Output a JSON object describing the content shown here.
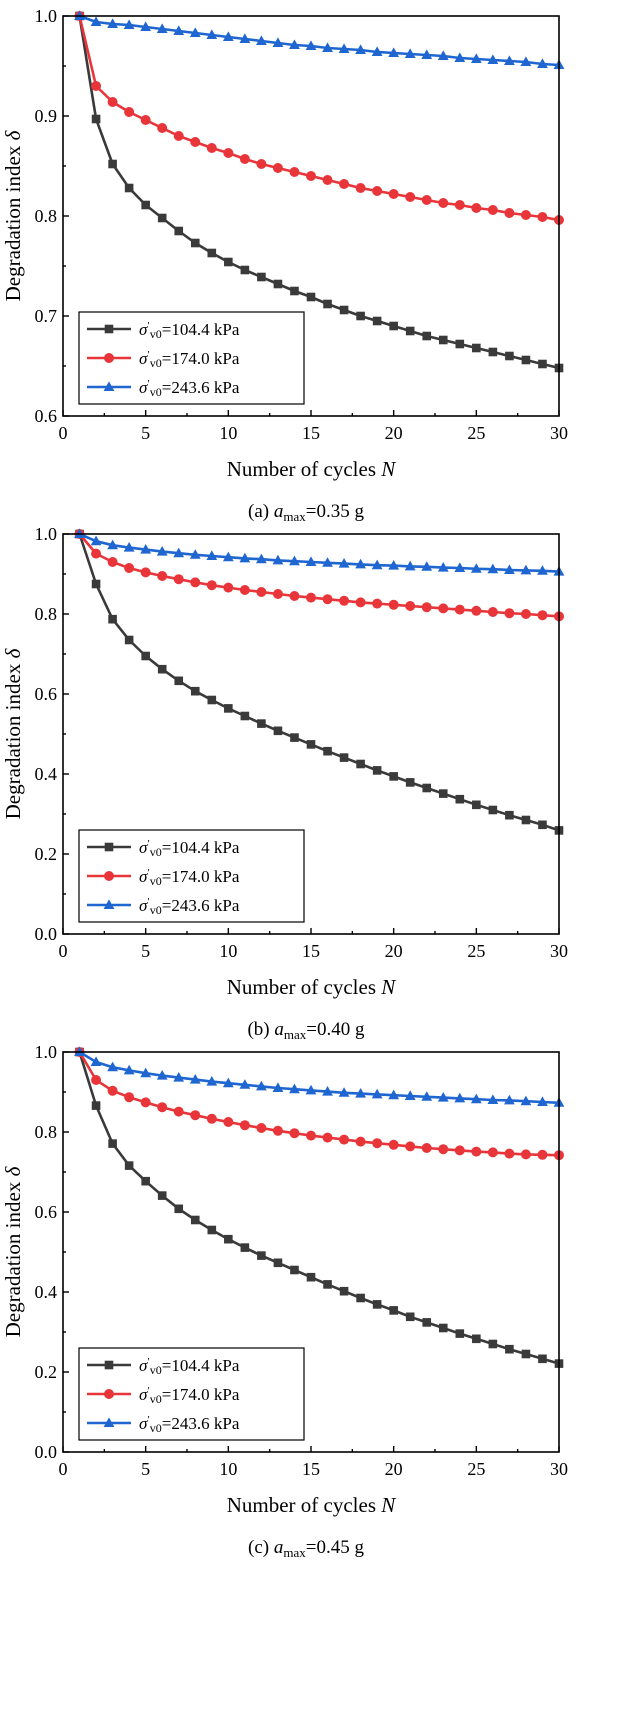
{
  "chart_data": [
    {
      "type": "line",
      "caption": "(a) a_max=0.35 g",
      "caption_parts": {
        "prefix": "(a) ",
        "var": "a",
        "sub": "max",
        "suffix": "=0.35 g"
      },
      "xlabel": "Number of cycles N",
      "xlabel_parts": {
        "text": "Number of cycles ",
        "var": "N"
      },
      "ylabel": "Degradation index δ",
      "ylabel_parts": {
        "text": "Degradation index ",
        "var": "δ"
      },
      "xlim": [
        0,
        30
      ],
      "ylim": [
        0.6,
        1.0
      ],
      "xticks": [
        0,
        5,
        10,
        15,
        20,
        25,
        30
      ],
      "xtick_labels": [
        "0",
        "5",
        "10",
        "15",
        "20",
        "25",
        "30"
      ],
      "yticks": [
        0.6,
        0.7,
        0.8,
        0.9,
        1.0
      ],
      "ytick_labels": [
        "0.6",
        "0.7",
        "0.8",
        "0.9",
        "1.0"
      ],
      "legend_position": "bottom-left",
      "x": [
        1,
        2,
        3,
        4,
        5,
        6,
        7,
        8,
        9,
        10,
        11,
        12,
        13,
        14,
        15,
        16,
        17,
        18,
        19,
        20,
        21,
        22,
        23,
        24,
        25,
        26,
        27,
        28,
        29,
        30
      ],
      "series": [
        {
          "name": "σ′v0=104.4 kPa",
          "sigma_label": "σ",
          "sub_label": "v0",
          "value_label": "=104.4 kPa",
          "color": "#3a3a3a",
          "marker": "square",
          "values": [
            1.0,
            0.897,
            0.852,
            0.828,
            0.811,
            0.798,
            0.785,
            0.773,
            0.763,
            0.754,
            0.746,
            0.739,
            0.732,
            0.725,
            0.719,
            0.712,
            0.706,
            0.7,
            0.695,
            0.69,
            0.685,
            0.68,
            0.676,
            0.672,
            0.668,
            0.664,
            0.66,
            0.656,
            0.652,
            0.648
          ]
        },
        {
          "name": "σ′v0=174.0 kPa",
          "sigma_label": "σ",
          "sub_label": "v0",
          "value_label": "=174.0 kPa",
          "color": "#e8353a",
          "marker": "circle",
          "values": [
            1.0,
            0.93,
            0.914,
            0.904,
            0.896,
            0.888,
            0.88,
            0.874,
            0.868,
            0.863,
            0.857,
            0.852,
            0.848,
            0.844,
            0.84,
            0.836,
            0.832,
            0.828,
            0.825,
            0.822,
            0.819,
            0.816,
            0.813,
            0.811,
            0.808,
            0.806,
            0.803,
            0.801,
            0.799,
            0.796
          ]
        },
        {
          "name": "σ′v0=243.6 kPa",
          "sigma_label": "σ",
          "sub_label": "v0",
          "value_label": "=243.6 kPa",
          "color": "#1f66d1",
          "marker": "triangle",
          "values": [
            1.0,
            0.994,
            0.992,
            0.991,
            0.989,
            0.987,
            0.985,
            0.983,
            0.981,
            0.979,
            0.977,
            0.975,
            0.973,
            0.971,
            0.97,
            0.968,
            0.967,
            0.966,
            0.964,
            0.963,
            0.962,
            0.961,
            0.96,
            0.958,
            0.957,
            0.956,
            0.955,
            0.954,
            0.952,
            0.951
          ]
        }
      ]
    },
    {
      "type": "line",
      "caption": "(b) a_max=0.40 g",
      "caption_parts": {
        "prefix": "(b) ",
        "var": "a",
        "sub": "max",
        "suffix": "=0.40 g"
      },
      "xlabel": "Number of cycles N",
      "xlabel_parts": {
        "text": "Number of cycles ",
        "var": "N"
      },
      "ylabel": "Degradation index δ",
      "ylabel_parts": {
        "text": "Degradation index ",
        "var": "δ"
      },
      "xlim": [
        0,
        30
      ],
      "ylim": [
        0.0,
        1.0
      ],
      "xticks": [
        0,
        5,
        10,
        15,
        20,
        25,
        30
      ],
      "xtick_labels": [
        "0",
        "5",
        "10",
        "15",
        "20",
        "25",
        "30"
      ],
      "yticks": [
        0.0,
        0.2,
        0.4,
        0.6,
        0.8,
        1.0
      ],
      "ytick_labels": [
        "0.0",
        "0.2",
        "0.4",
        "0.6",
        "0.8",
        "1.0"
      ],
      "legend_position": "bottom-left",
      "x": [
        1,
        2,
        3,
        4,
        5,
        6,
        7,
        8,
        9,
        10,
        11,
        12,
        13,
        14,
        15,
        16,
        17,
        18,
        19,
        20,
        21,
        22,
        23,
        24,
        25,
        26,
        27,
        28,
        29,
        30
      ],
      "series": [
        {
          "name": "σ′v0=104.4 kPa",
          "sigma_label": "σ",
          "sub_label": "v0",
          "value_label": "=104.4 kPa",
          "color": "#3a3a3a",
          "marker": "square",
          "values": [
            1.0,
            0.875,
            0.787,
            0.735,
            0.695,
            0.662,
            0.633,
            0.607,
            0.585,
            0.564,
            0.545,
            0.526,
            0.508,
            0.491,
            0.474,
            0.457,
            0.441,
            0.425,
            0.409,
            0.394,
            0.379,
            0.365,
            0.351,
            0.337,
            0.323,
            0.31,
            0.297,
            0.285,
            0.273,
            0.259
          ]
        },
        {
          "name": "σ′v0=174.0 kPa",
          "sigma_label": "σ",
          "sub_label": "v0",
          "value_label": "=174.0 kPa",
          "color": "#e8353a",
          "marker": "circle",
          "values": [
            1.0,
            0.951,
            0.93,
            0.915,
            0.904,
            0.895,
            0.887,
            0.879,
            0.872,
            0.866,
            0.86,
            0.855,
            0.85,
            0.845,
            0.841,
            0.837,
            0.833,
            0.829,
            0.826,
            0.823,
            0.82,
            0.817,
            0.814,
            0.811,
            0.808,
            0.805,
            0.802,
            0.8,
            0.797,
            0.794
          ]
        },
        {
          "name": "σ′v0=243.6 kPa",
          "sigma_label": "σ",
          "sub_label": "v0",
          "value_label": "=243.6 kPa",
          "color": "#1f66d1",
          "marker": "triangle",
          "values": [
            1.0,
            0.982,
            0.972,
            0.966,
            0.961,
            0.956,
            0.952,
            0.948,
            0.945,
            0.942,
            0.939,
            0.937,
            0.934,
            0.932,
            0.93,
            0.928,
            0.926,
            0.924,
            0.922,
            0.921,
            0.919,
            0.918,
            0.916,
            0.915,
            0.913,
            0.912,
            0.91,
            0.909,
            0.908,
            0.906
          ]
        }
      ]
    },
    {
      "type": "line",
      "caption": "(c) a_max=0.45 g",
      "caption_parts": {
        "prefix": "(c) ",
        "var": "a",
        "sub": "max",
        "suffix": "=0.45 g"
      },
      "xlabel": "Number of cycles N",
      "xlabel_parts": {
        "text": "Number of cycles ",
        "var": "N"
      },
      "ylabel": "Degradation index δ",
      "ylabel_parts": {
        "text": "Degradation index ",
        "var": "δ"
      },
      "xlim": [
        0,
        30
      ],
      "ylim": [
        0.0,
        1.0
      ],
      "xticks": [
        0,
        5,
        10,
        15,
        20,
        25,
        30
      ],
      "xtick_labels": [
        "0",
        "5",
        "10",
        "15",
        "20",
        "25",
        "30"
      ],
      "yticks": [
        0.0,
        0.2,
        0.4,
        0.6,
        0.8,
        1.0
      ],
      "ytick_labels": [
        "0.0",
        "0.2",
        "0.4",
        "0.6",
        "0.8",
        "1.0"
      ],
      "legend_position": "bottom-left",
      "x": [
        1,
        2,
        3,
        4,
        5,
        6,
        7,
        8,
        9,
        10,
        11,
        12,
        13,
        14,
        15,
        16,
        17,
        18,
        19,
        20,
        21,
        22,
        23,
        24,
        25,
        26,
        27,
        28,
        29,
        30
      ],
      "series": [
        {
          "name": "σ′v0=104.4 kPa",
          "sigma_label": "σ",
          "sub_label": "v0",
          "value_label": "=104.4 kPa",
          "color": "#3a3a3a",
          "marker": "square",
          "values": [
            1.0,
            0.866,
            0.771,
            0.716,
            0.677,
            0.641,
            0.608,
            0.58,
            0.555,
            0.532,
            0.511,
            0.491,
            0.473,
            0.455,
            0.437,
            0.419,
            0.402,
            0.385,
            0.369,
            0.354,
            0.338,
            0.324,
            0.31,
            0.296,
            0.283,
            0.27,
            0.257,
            0.245,
            0.233,
            0.221
          ]
        },
        {
          "name": "σ′v0=174.0 kPa",
          "sigma_label": "σ",
          "sub_label": "v0",
          "value_label": "=174.0 kPa",
          "color": "#e8353a",
          "marker": "circle",
          "values": [
            1.0,
            0.93,
            0.903,
            0.887,
            0.874,
            0.862,
            0.851,
            0.842,
            0.833,
            0.825,
            0.817,
            0.81,
            0.803,
            0.797,
            0.791,
            0.786,
            0.781,
            0.776,
            0.772,
            0.768,
            0.764,
            0.76,
            0.757,
            0.754,
            0.751,
            0.749,
            0.746,
            0.744,
            0.743,
            0.742
          ]
        },
        {
          "name": "σ′v0=243.6 kPa",
          "sigma_label": "σ",
          "sub_label": "v0",
          "value_label": "=243.6 kPa",
          "color": "#1f66d1",
          "marker": "triangle",
          "values": [
            1.0,
            0.975,
            0.962,
            0.954,
            0.947,
            0.941,
            0.936,
            0.931,
            0.926,
            0.922,
            0.918,
            0.914,
            0.91,
            0.907,
            0.904,
            0.901,
            0.898,
            0.896,
            0.894,
            0.892,
            0.89,
            0.888,
            0.886,
            0.884,
            0.882,
            0.88,
            0.879,
            0.877,
            0.875,
            0.873
          ]
        }
      ]
    }
  ]
}
